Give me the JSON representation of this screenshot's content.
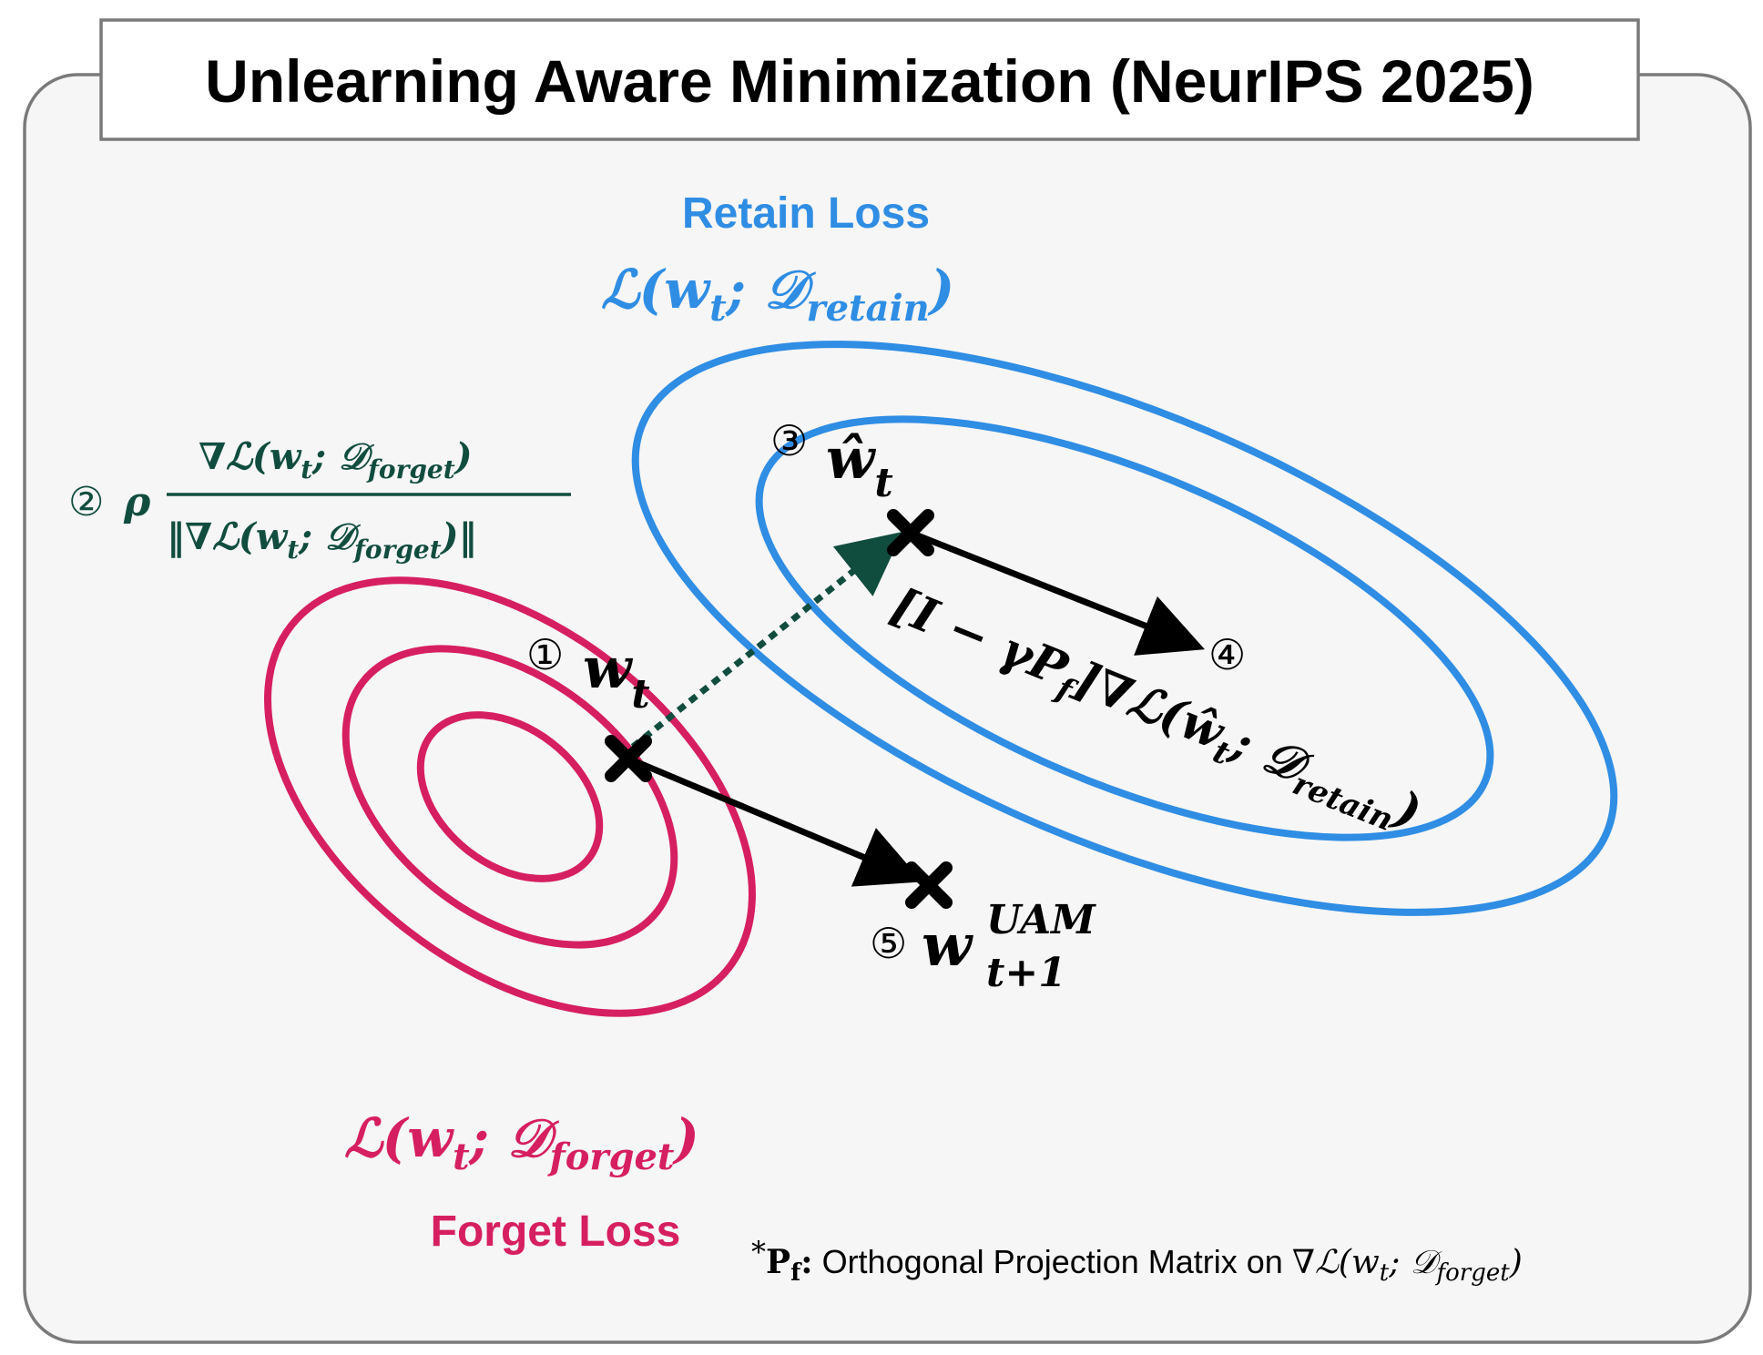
{
  "title": "Unlearning Aware Minimization (NeurIPS 2025)",
  "colors": {
    "panel_fill": "#f6f6f6",
    "panel_stroke": "#7a7a7a",
    "retain": "#2f8de4",
    "forget": "#d61f60",
    "perturb": "#114d3f",
    "ink": "#000000"
  },
  "retain": {
    "label": "Retain Loss",
    "formula": "ℒ(wₜ; 𝒟ᵣₑₜₐᵢₙ)",
    "f_main": "ℒ(w",
    "f_sub_t": "t",
    "f_mid": "; 𝒟",
    "f_sub_d": "retain",
    "f_close": ")"
  },
  "forget": {
    "label": "Forget Loss",
    "f_main": "ℒ(w",
    "f_sub_t": "t",
    "f_mid": "; 𝒟",
    "f_sub_d": "forget",
    "f_close": ")"
  },
  "steps": {
    "s1": {
      "num": "①",
      "base": "w",
      "sub": "t"
    },
    "s2": {
      "num": "②",
      "rho": "ρ",
      "numer_main": "∇ℒ(w",
      "numer_t": "t",
      "numer_mid": "; 𝒟",
      "numer_d": "forget",
      "numer_close": ")",
      "denom_open": "‖∇ℒ(w",
      "denom_t": "t",
      "denom_mid": "; 𝒟",
      "denom_d": "forget",
      "denom_close": ")‖"
    },
    "s3": {
      "num": "③",
      "base": "ŵ",
      "sub": "t"
    },
    "s4": {
      "num": "④",
      "main": "[I − γP",
      "pf_sub": "f",
      "mid": "]∇ℒ(ŵ",
      "t_sub": "t",
      "mid2": "; 𝒟",
      "d_sub": "retain",
      "close": ")"
    },
    "s5": {
      "num": "⑤",
      "base": "w",
      "sup": "UAM",
      "sub": "t+1"
    }
  },
  "footnote": {
    "star": "*",
    "pf": "P",
    "pf_sub": "f",
    "colon": ":",
    "text": " Orthogonal Projection Matrix on ",
    "f_main": "∇ℒ(w",
    "f_t": "t",
    "f_mid": "; 𝒟",
    "f_d": "forget",
    "f_close": ")"
  }
}
